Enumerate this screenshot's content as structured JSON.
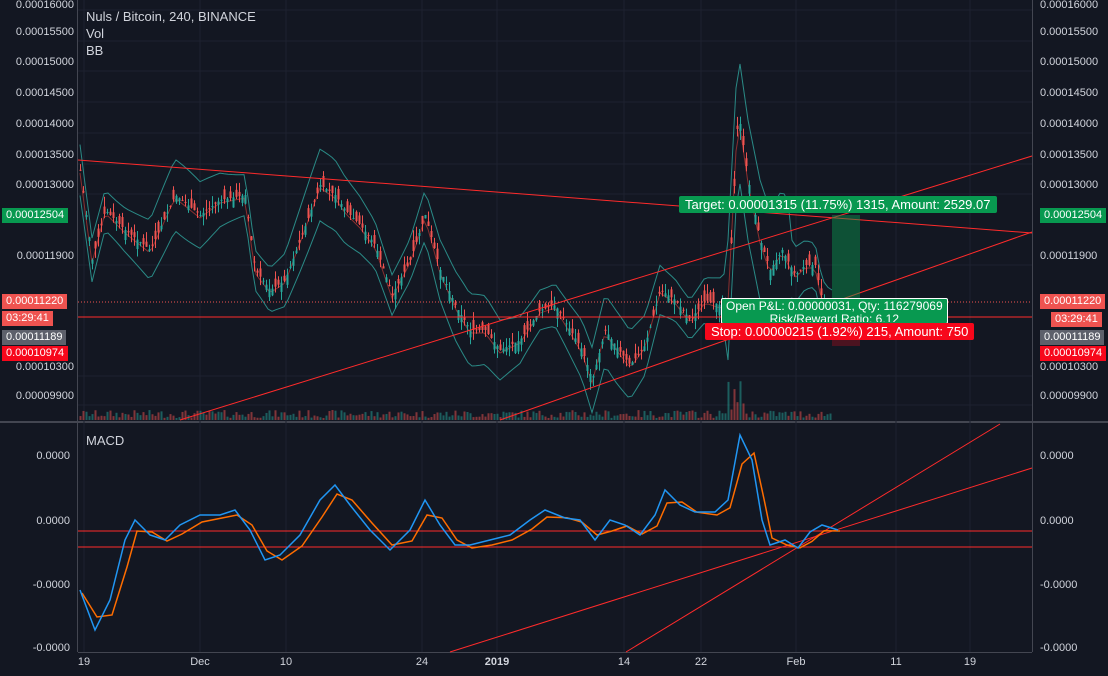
{
  "symbol": {
    "title": "Nuls / Bitcoin, 240, BINANCE",
    "indicators": [
      "Vol",
      "BB"
    ]
  },
  "macd_label": "MACD",
  "price_scale_ticks": [
    "0.00016000",
    "0.00015500",
    "0.00015000",
    "0.00014500",
    "0.00014000",
    "0.00013500",
    "0.00013000",
    "0.00011900",
    "0.00010300",
    "0.00009900"
  ],
  "price_badges": {
    "target_level": "0.00012504",
    "current_price": "0.00011220",
    "countdown": "03:29:41",
    "entry_level": "0.00011189",
    "stop_level": "0.00010974"
  },
  "macd_ticks": [
    "0.0000",
    "0.0000",
    "-0.0000",
    "-0.0000"
  ],
  "time_axis": [
    "19",
    "Dec",
    "10",
    "24",
    "2019",
    "14",
    "22",
    "Feb",
    "11",
    "19"
  ],
  "position_tool": {
    "target": "Target: 0.00001315 (11.75%) 1315, Amount: 2529.07",
    "open_pl": "Open P&L: 0.00000031, Qty: 116279069",
    "risk_reward": "Risk/Reward Ratio: 6.12",
    "stop": "Stop: 0.00000215 (1.92%) 215, Amount: 750"
  },
  "colors": {
    "background": "#131722",
    "up": "#26a69a",
    "down": "#ef5350",
    "trendline": "#ff2b2b",
    "target_green": "#089950",
    "stop_red": "#f7071b",
    "macd_line": "#2196f3",
    "signal_line": "#ff6d00",
    "bb": "#2a8a86"
  }
}
